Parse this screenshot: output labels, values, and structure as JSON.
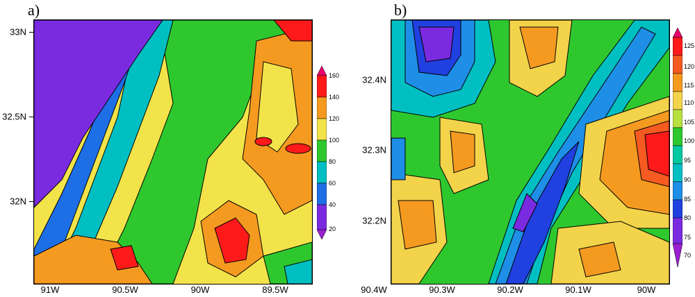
{
  "panels": [
    {
      "label": "a)",
      "x_ticks": [
        "91W",
        "90.5W",
        "90W",
        "89.5W"
      ],
      "y_ticks": [
        "33N",
        "32.5N",
        "32N"
      ],
      "colorbar": {
        "levels": [
          "160",
          "140",
          "120",
          "100",
          "80",
          "60",
          "40",
          "20"
        ],
        "colors": [
          "#e8006a",
          "#ff1a1a",
          "#f59a20",
          "#f3e34a",
          "#2ec82e",
          "#00bfc3",
          "#1e6ee6",
          "#7a2be0",
          "#9b1fd0"
        ]
      }
    },
    {
      "label": "b)",
      "x_ticks": [
        "90.4W",
        "90.3W",
        "90.2W",
        "90.1W",
        "90W"
      ],
      "y_ticks": [
        "32.4N",
        "32.3N",
        "32.2N"
      ],
      "colorbar": {
        "levels": [
          "125",
          "120",
          "115",
          "110",
          "105",
          "100",
          "95",
          "90",
          "85",
          "80",
          "75",
          "70"
        ],
        "colors": [
          "#e8006a",
          "#ff1a1a",
          "#f55a20",
          "#f59a20",
          "#f3d34a",
          "#b8e040",
          "#2ec82e",
          "#00c8a0",
          "#00bfc3",
          "#1e8ee6",
          "#2040e0",
          "#7a2be0",
          "#9b1fd0"
        ]
      }
    }
  ],
  "chart_data": [
    {
      "type": "heatmap",
      "title": "a)",
      "x_ticks": [
        "91W",
        "90.5W",
        "90W",
        "89.5W"
      ],
      "y_ticks": [
        "33N",
        "32.5N",
        "32N"
      ],
      "color_levels": [
        20,
        40,
        60,
        80,
        100,
        120,
        140,
        160
      ]
    },
    {
      "type": "heatmap",
      "title": "b)",
      "x_ticks": [
        "90.4W",
        "90.3W",
        "90.2W",
        "90.1W",
        "90W"
      ],
      "y_ticks": [
        "32.4N",
        "32.3N",
        "32.2N"
      ],
      "color_levels": [
        70,
        75,
        80,
        85,
        90,
        95,
        100,
        105,
        110,
        115,
        120,
        125
      ]
    }
  ]
}
